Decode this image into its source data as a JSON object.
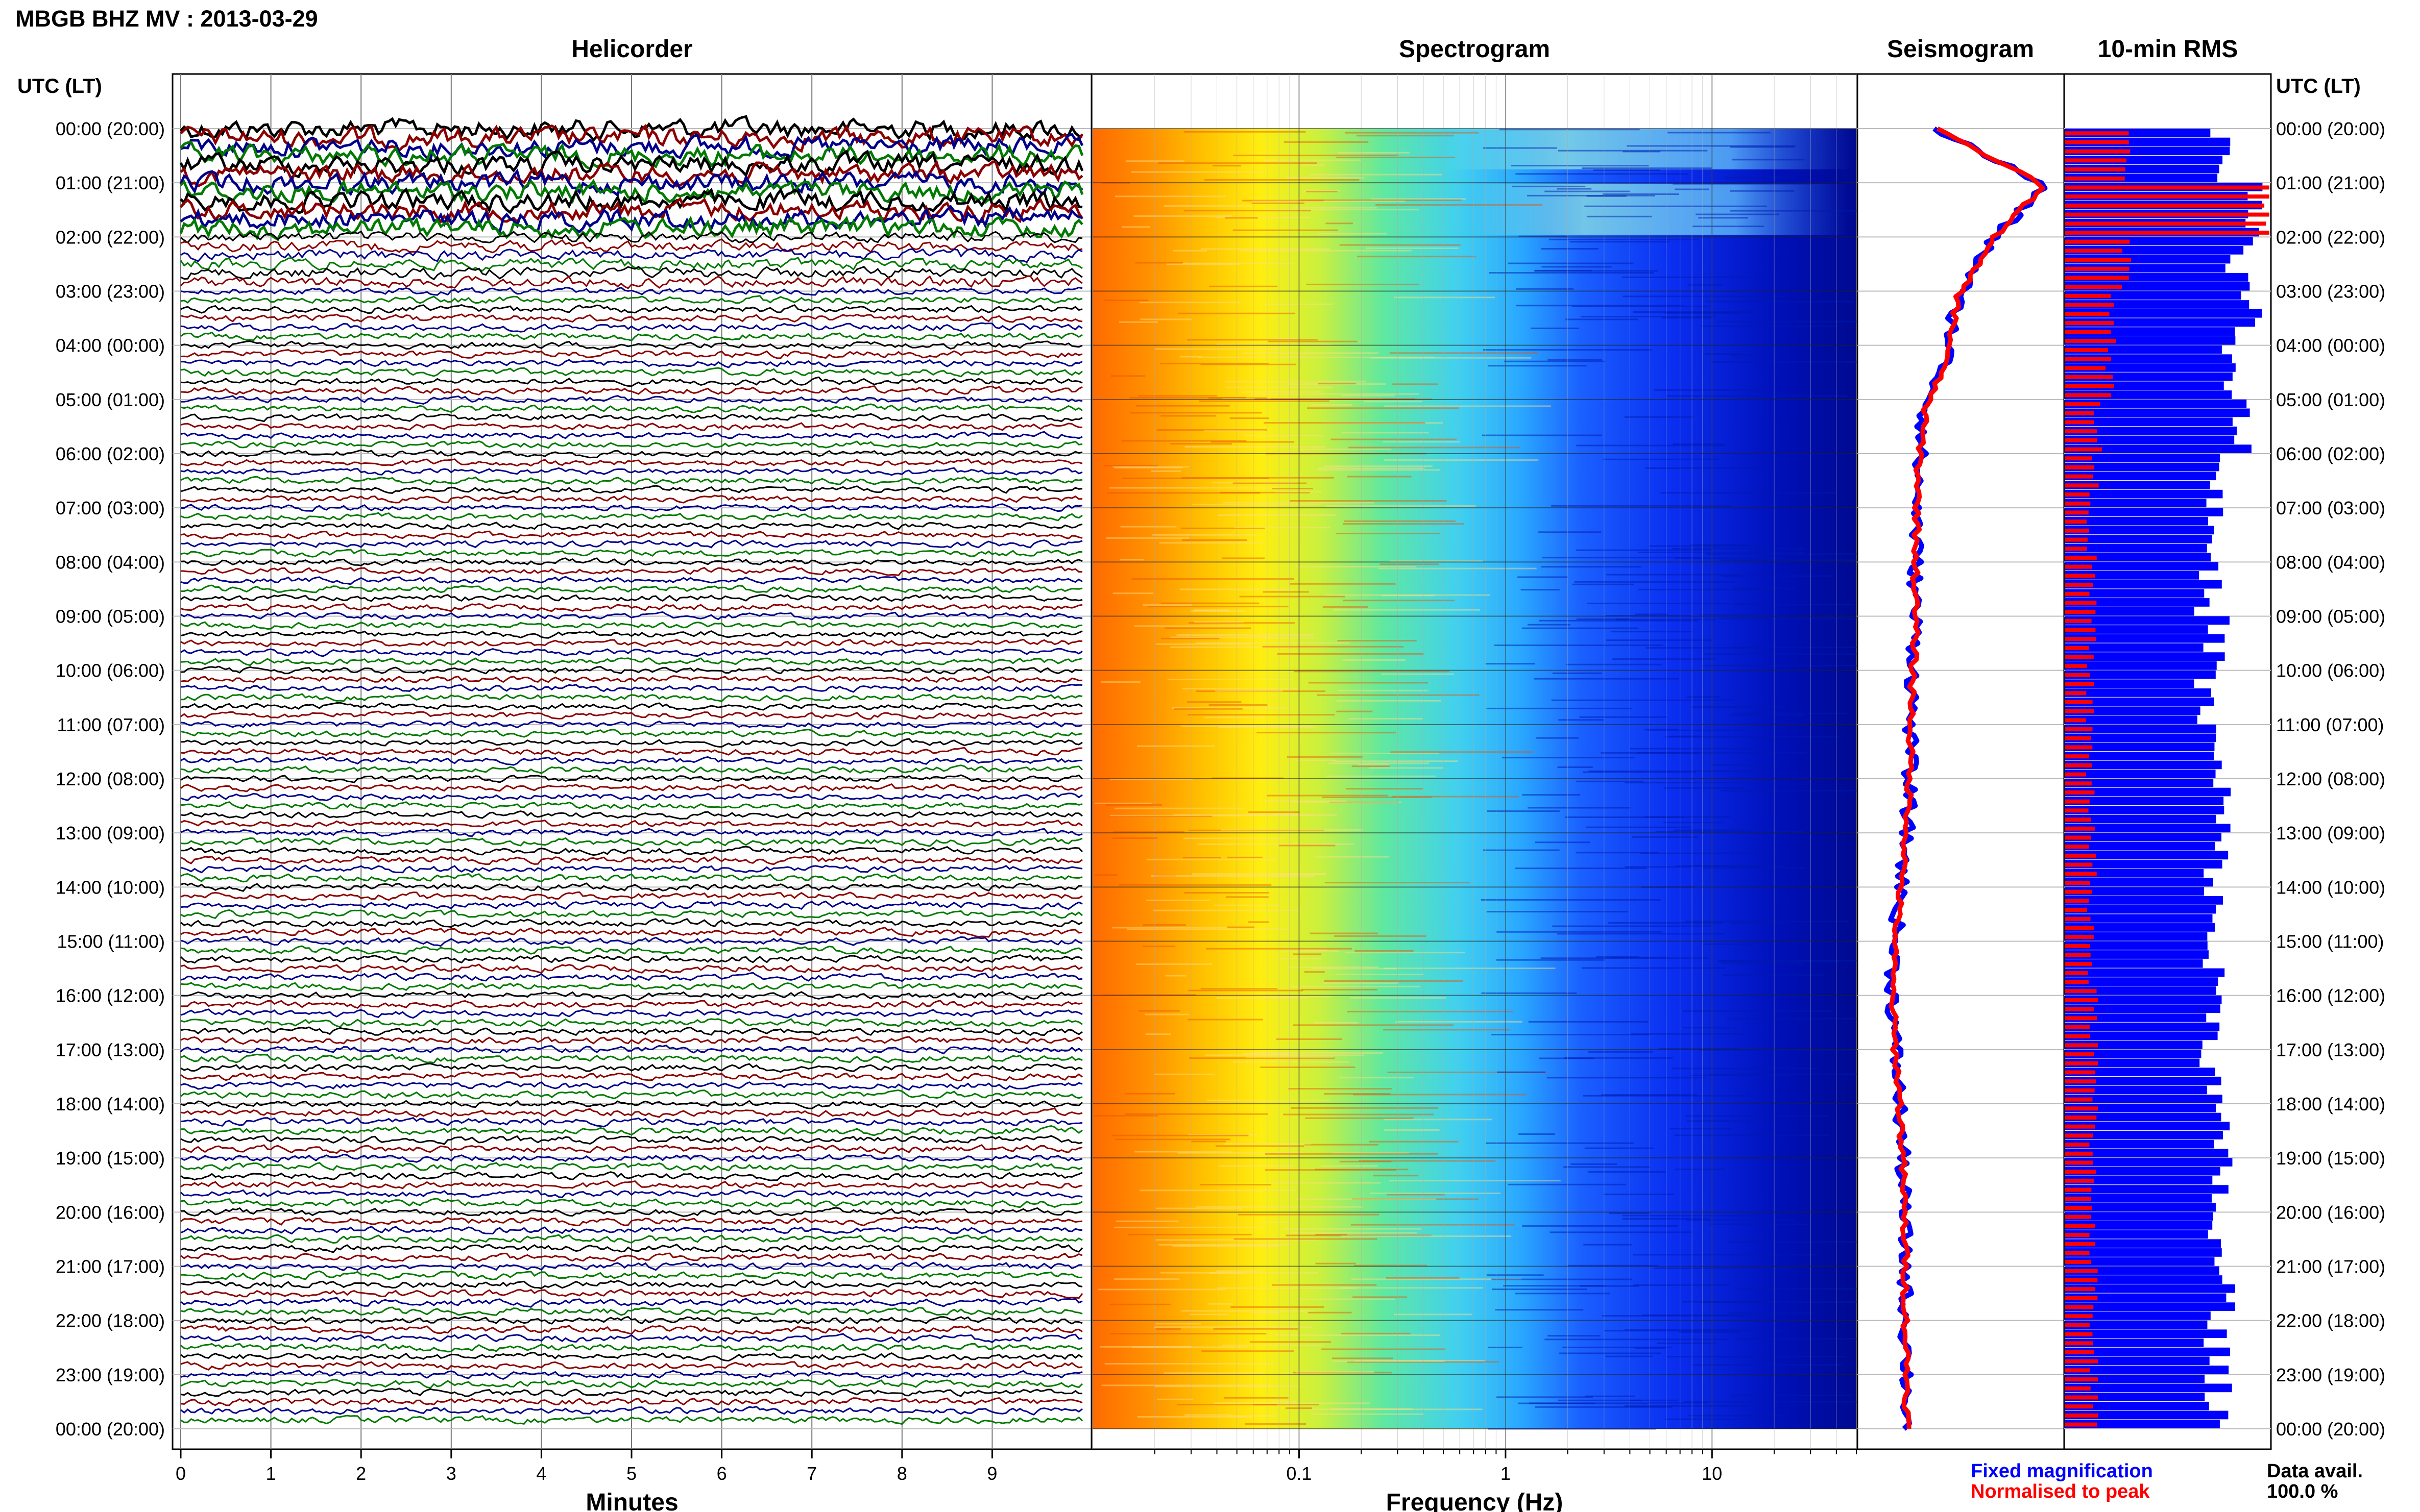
{
  "title": "MBGB BHZ MV : 2013-03-29",
  "utc_header": "UTC (LT)",
  "colors": {
    "c_black": "#000000",
    "c_red": "#8b0000",
    "c_blue": "#00008b",
    "c_green": "#007a00",
    "fixed": "#0000ff",
    "norm": "#ff0000"
  },
  "chart_data": [
    {
      "type": "line",
      "title": "Helicorder",
      "xlabel": "Minutes",
      "x_ticks": [
        "0",
        "1",
        "2",
        "3",
        "4",
        "5",
        "6",
        "7",
        "8",
        "9"
      ],
      "xlim": [
        0,
        10
      ],
      "time_labels": [
        "00:00 (20:00)",
        "01:00 (21:00)",
        "02:00 (22:00)",
        "03:00 (23:00)",
        "04:00 (00:00)",
        "05:00 (01:00)",
        "06:00 (02:00)",
        "07:00 (03:00)",
        "08:00 (04:00)",
        "09:00 (05:00)",
        "10:00 (06:00)",
        "11:00 (07:00)",
        "12:00 (08:00)",
        "13:00 (09:00)",
        "14:00 (10:00)",
        "15:00 (11:00)",
        "16:00 (12:00)",
        "17:00 (13:00)",
        "18:00 (14:00)",
        "19:00 (15:00)",
        "20:00 (16:00)",
        "21:00 (17:00)",
        "22:00 (18:00)",
        "23:00 (19:00)",
        "00:00 (20:00)"
      ],
      "trace_amplitude_per_hour": [
        3.0,
        3.0,
        1.6,
        1.0,
        1.0,
        0.9,
        0.9,
        0.9,
        0.9,
        0.9,
        0.9,
        0.9,
        0.9,
        1.0,
        1.0,
        1.0,
        1.0,
        1.0,
        1.0,
        1.0,
        1.0,
        1.0,
        1.0,
        1.0
      ]
    },
    {
      "type": "heatmap",
      "title": "Spectrogram",
      "xlabel": "Frequency (Hz)",
      "x_scale": "log",
      "xlim": [
        0.01,
        50
      ],
      "x_ticks": [
        "0.1",
        "1",
        "10"
      ]
    },
    {
      "type": "line",
      "title": "Seismogram",
      "series": [
        {
          "name": "Fixed magnification",
          "values": [
            0.28,
            0.95,
            0.62,
            0.42,
            0.36,
            0.22,
            0.18,
            0.17,
            0.16,
            0.16,
            0.14,
            0.13,
            0.12,
            0.09,
            0.05,
            0.02,
            0.03,
            0.06,
            0.08,
            0.09,
            0.1,
            0.1,
            0.11,
            0.11
          ]
        },
        {
          "name": "Normalised to peak",
          "values": [
            0.28,
            0.95,
            0.62,
            0.42,
            0.36,
            0.22,
            0.18,
            0.17,
            0.16,
            0.16,
            0.14,
            0.13,
            0.12,
            0.09,
            0.05,
            0.02,
            0.03,
            0.06,
            0.08,
            0.09,
            0.1,
            0.1,
            0.11,
            0.11
          ]
        }
      ]
    },
    {
      "type": "bar",
      "title": "10-min RMS",
      "series": [
        {
          "name": "Fixed magnification",
          "values": [
            0.78,
            0.95,
            0.85,
            0.9,
            0.82,
            0.88,
            0.75,
            0.72,
            0.7,
            0.74,
            0.68,
            0.72,
            0.76,
            0.74,
            0.72,
            0.72,
            0.74,
            0.72,
            0.74,
            0.76,
            0.72,
            0.78,
            0.74,
            0.75
          ]
        },
        {
          "name": "Normalised to peak",
          "values": [
            0.3,
            1.0,
            0.3,
            0.24,
            0.22,
            0.16,
            0.14,
            0.13,
            0.13,
            0.13,
            0.12,
            0.12,
            0.13,
            0.13,
            0.13,
            0.13,
            0.14,
            0.14,
            0.14,
            0.14,
            0.14,
            0.14,
            0.14,
            0.14
          ]
        }
      ],
      "data_availability_label": "Data avail.",
      "data_availability": "100.0 %"
    }
  ]
}
